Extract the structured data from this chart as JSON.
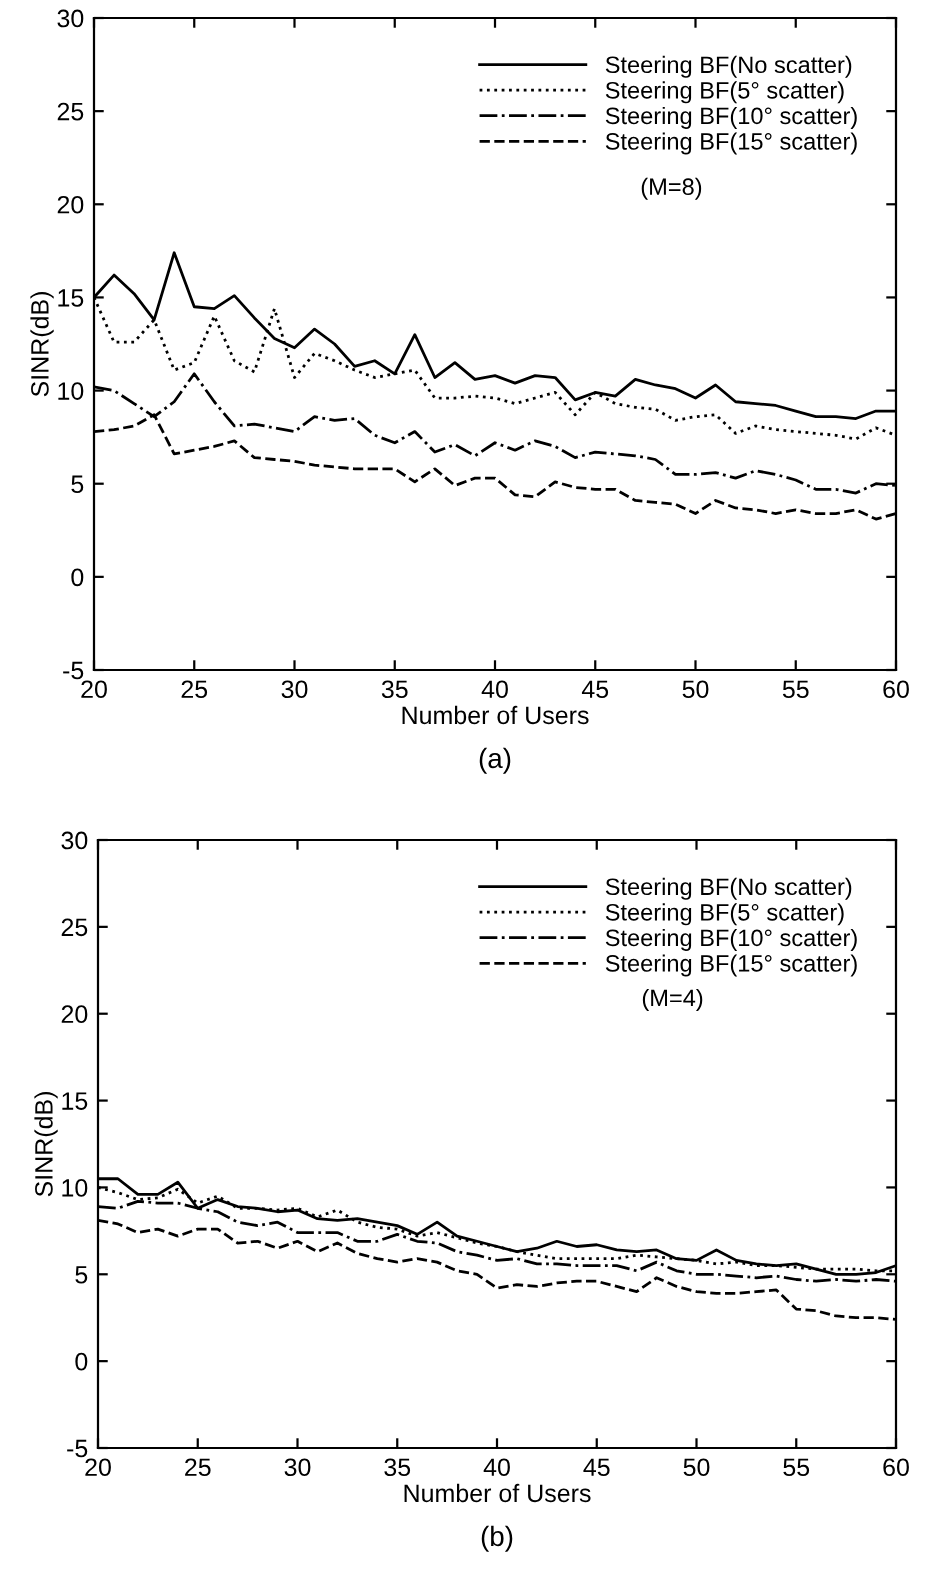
{
  "chart_data": [
    {
      "type": "line",
      "title": "(a)",
      "xlabel": "Number of Users",
      "ylabel": "SINR(dB)",
      "x": [
        20,
        21,
        22,
        23,
        24,
        25,
        26,
        27,
        28,
        29,
        30,
        31,
        32,
        33,
        34,
        35,
        36,
        37,
        38,
        39,
        40,
        41,
        42,
        43,
        44,
        45,
        46,
        47,
        48,
        49,
        50,
        51,
        52,
        53,
        54,
        55,
        56,
        57,
        58,
        59,
        60
      ],
      "series": [
        {
          "name": "Steering BF(No scatter)",
          "color": "#000000",
          "line_style": "solid",
          "values": [
            15.0,
            16.2,
            15.2,
            13.8,
            17.4,
            14.5,
            14.4,
            15.1,
            13.9,
            12.8,
            12.3,
            13.3,
            12.5,
            11.3,
            11.6,
            10.9,
            13.0,
            10.7,
            11.5,
            10.6,
            10.8,
            10.4,
            10.8,
            10.7,
            9.5,
            9.9,
            9.7,
            10.6,
            10.3,
            10.1,
            9.6,
            10.3,
            9.4,
            9.3,
            9.2,
            8.9,
            8.6,
            8.6,
            8.5,
            8.9,
            8.9
          ]
        },
        {
          "name": "Steering BF(5° scatter)",
          "color": "#000000",
          "line_style": "dotted",
          "values": [
            15.0,
            12.6,
            12.6,
            13.8,
            11.1,
            11.5,
            14.0,
            11.6,
            11.0,
            14.4,
            10.7,
            12.0,
            11.6,
            11.1,
            10.7,
            10.9,
            11.1,
            9.6,
            9.6,
            9.7,
            9.6,
            9.3,
            9.6,
            9.9,
            8.7,
            9.9,
            9.3,
            9.1,
            9.0,
            8.4,
            8.6,
            8.7,
            7.7,
            8.1,
            7.9,
            7.8,
            7.7,
            7.6,
            7.4,
            8.0,
            7.6
          ]
        },
        {
          "name": "Steering BF(10° scatter)",
          "color": "#000000",
          "line_style": "dashdot",
          "values": [
            10.2,
            10.0,
            9.3,
            8.6,
            9.4,
            10.9,
            9.4,
            8.1,
            8.2,
            8.0,
            7.8,
            8.6,
            8.4,
            8.5,
            7.6,
            7.2,
            7.8,
            6.7,
            7.1,
            6.5,
            7.2,
            6.8,
            7.3,
            7.0,
            6.4,
            6.7,
            6.6,
            6.5,
            6.3,
            5.5,
            5.5,
            5.6,
            5.3,
            5.7,
            5.5,
            5.2,
            4.7,
            4.7,
            4.5,
            5.0,
            4.9
          ]
        },
        {
          "name": "Steering BF(15° scatter)",
          "color": "#000000",
          "line_style": "dashed",
          "values": [
            7.8,
            7.9,
            8.1,
            8.7,
            6.6,
            6.8,
            7.0,
            7.3,
            6.4,
            6.3,
            6.2,
            6.0,
            5.9,
            5.8,
            5.8,
            5.8,
            5.1,
            5.8,
            4.9,
            5.3,
            5.3,
            4.4,
            4.3,
            5.1,
            4.8,
            4.7,
            4.7,
            4.1,
            4.0,
            3.9,
            3.4,
            4.1,
            3.7,
            3.6,
            3.4,
            3.6,
            3.4,
            3.4,
            3.6,
            3.1,
            3.4
          ]
        }
      ],
      "annotations": [
        "(M=8)"
      ],
      "xlim": [
        20,
        60
      ],
      "ylim": [
        -5,
        30
      ],
      "xticks": [
        20,
        25,
        30,
        35,
        40,
        45,
        50,
        55,
        60
      ],
      "yticks": [
        -5,
        0,
        5,
        10,
        15,
        20,
        25,
        30
      ],
      "legend": "top right",
      "grid": false
    },
    {
      "type": "line",
      "title": "(b)",
      "xlabel": "Number of Users",
      "ylabel": "SINR(dB)",
      "x": [
        20,
        21,
        22,
        23,
        24,
        25,
        26,
        27,
        28,
        29,
        30,
        31,
        32,
        33,
        34,
        35,
        36,
        37,
        38,
        39,
        40,
        41,
        42,
        43,
        44,
        45,
        46,
        47,
        48,
        49,
        50,
        51,
        52,
        53,
        54,
        55,
        56,
        57,
        58,
        59,
        60
      ],
      "series": [
        {
          "name": "Steering BF(No scatter)",
          "color": "#000000",
          "line_style": "solid",
          "values": [
            10.5,
            10.5,
            9.6,
            9.6,
            10.3,
            8.8,
            9.3,
            8.9,
            8.8,
            8.6,
            8.7,
            8.2,
            8.1,
            8.2,
            8.0,
            7.8,
            7.3,
            8.0,
            7.2,
            6.9,
            6.6,
            6.3,
            6.5,
            6.9,
            6.6,
            6.7,
            6.4,
            6.3,
            6.4,
            5.9,
            5.8,
            6.4,
            5.8,
            5.6,
            5.5,
            5.6,
            5.3,
            5.0,
            5.0,
            5.1,
            5.5
          ]
        },
        {
          "name": "Steering BF(5° scatter)",
          "color": "#000000",
          "line_style": "dotted",
          "values": [
            10.0,
            9.7,
            9.3,
            9.4,
            9.9,
            9.1,
            9.5,
            8.8,
            8.8,
            8.7,
            8.8,
            8.3,
            8.7,
            8.0,
            7.7,
            7.6,
            7.2,
            7.4,
            7.1,
            6.8,
            6.6,
            6.3,
            6.1,
            5.9,
            5.9,
            5.9,
            5.9,
            6.1,
            6.0,
            5.9,
            5.8,
            5.6,
            5.7,
            5.5,
            5.5,
            5.4,
            5.3,
            5.3,
            5.3,
            5.2,
            5.2
          ]
        },
        {
          "name": "Steering BF(10° scatter)",
          "color": "#000000",
          "line_style": "dashdot",
          "values": [
            8.9,
            8.8,
            9.2,
            9.1,
            9.1,
            8.8,
            8.6,
            8.0,
            7.8,
            8.0,
            7.4,
            7.4,
            7.4,
            6.9,
            6.9,
            7.3,
            6.9,
            6.8,
            6.3,
            6.1,
            5.8,
            5.9,
            5.6,
            5.6,
            5.5,
            5.5,
            5.5,
            5.2,
            5.7,
            5.2,
            5.0,
            5.0,
            4.9,
            4.8,
            4.9,
            4.7,
            4.6,
            4.7,
            4.6,
            4.7,
            4.6
          ]
        },
        {
          "name": "Steering BF(15° scatter)",
          "color": "#000000",
          "line_style": "dashed",
          "values": [
            8.1,
            7.9,
            7.4,
            7.6,
            7.2,
            7.6,
            7.6,
            6.8,
            6.9,
            6.5,
            6.9,
            6.3,
            6.8,
            6.2,
            5.9,
            5.7,
            5.9,
            5.7,
            5.2,
            5.0,
            4.2,
            4.4,
            4.3,
            4.5,
            4.6,
            4.6,
            4.3,
            4.0,
            4.8,
            4.3,
            4.0,
            3.9,
            3.9,
            4.0,
            4.1,
            3.0,
            2.9,
            2.6,
            2.5,
            2.5,
            2.4
          ]
        }
      ],
      "annotations": [
        "(M=4)"
      ],
      "xlim": [
        20,
        60
      ],
      "ylim": [
        -5,
        30
      ],
      "xticks": [
        20,
        25,
        30,
        35,
        40,
        45,
        50,
        55,
        60
      ],
      "yticks": [
        -5,
        0,
        5,
        10,
        15,
        20,
        25,
        30
      ],
      "legend": "top right",
      "grid": false
    }
  ]
}
